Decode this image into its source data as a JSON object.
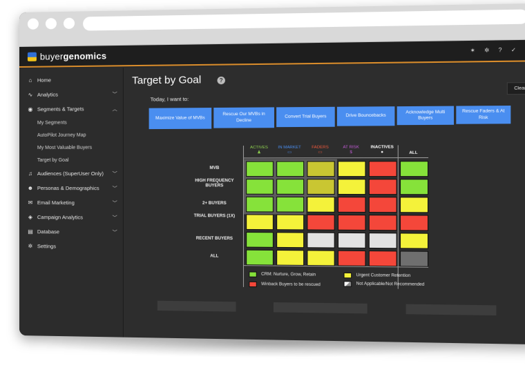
{
  "app": {
    "brand_light": "buyer",
    "brand_bold": "genomics"
  },
  "topbar_icons": [
    "bulb-icon",
    "gear-icon",
    "help-icon",
    "chevron-icon",
    "user-icon"
  ],
  "sidebar": {
    "items": [
      {
        "label": "Home",
        "icon": "home-icon",
        "chevron": false
      },
      {
        "label": "Analytics",
        "icon": "analytics-icon",
        "chevron": true
      },
      {
        "label": "Segments & Targets",
        "icon": "target-icon",
        "chevron": true,
        "open": true,
        "children": [
          "My Segments",
          "AutoPilot Journey Map",
          "My Most Valuable Buyers",
          "Target by Goal"
        ]
      },
      {
        "label": "Audiences (SuperUser Only)",
        "icon": "music-icon",
        "chevron": true
      },
      {
        "label": "Personas & Demographics",
        "icon": "personas-icon",
        "chevron": true
      },
      {
        "label": "Email Marketing",
        "icon": "mail-icon",
        "chevron": true
      },
      {
        "label": "Campaign Analytics",
        "icon": "campaign-icon",
        "chevron": true
      },
      {
        "label": "Database",
        "icon": "database-icon",
        "chevron": true
      },
      {
        "label": "Settings",
        "icon": "gear-icon",
        "chevron": false
      }
    ]
  },
  "main": {
    "title": "Target by Goal",
    "clear_label": "Clear",
    "prompt": "Today, I want to:",
    "goals": [
      "Maximize Value of MVBs",
      "Rescue Our MVBs in Decline",
      "Convert Trial Buyers",
      "Drive Bouncebacks",
      "Acknowledge Multi Buyers",
      "Rescue Faders & At Risk"
    ]
  },
  "grid": {
    "columns": [
      {
        "label": "ACTIVES",
        "color": "#8fd14f"
      },
      {
        "label": "IN MARKET",
        "color": "#4a8ef0"
      },
      {
        "label": "FADERS",
        "color": "#f0593c"
      },
      {
        "label": "AT RISK",
        "color": "#c25bd6"
      },
      {
        "label": "INACTIVES",
        "color": "#ffffff"
      },
      {
        "label": "ALL",
        "color": "#ffffff"
      }
    ],
    "rows": [
      {
        "label": "MVB",
        "cells": [
          "green",
          "green",
          "yellow-dim",
          "yellow",
          "red",
          "green"
        ],
        "active": [
          true,
          true,
          true,
          false,
          false,
          false
        ]
      },
      {
        "label": "HIGH FREQUENCY BUYERS",
        "cells": [
          "green",
          "green",
          "yellow-dim",
          "yellow",
          "red",
          "green"
        ],
        "active": [
          true,
          true,
          true,
          false,
          false,
          false
        ]
      },
      {
        "label": "2+ BUYERS",
        "cells": [
          "green",
          "green",
          "yellow",
          "red",
          "red",
          "yellow"
        ],
        "active": [
          true,
          true,
          false,
          false,
          false,
          false
        ]
      },
      {
        "label": "TRIAL BUYERS (1X)",
        "cells": [
          "yellow",
          "yellow",
          "red",
          "red",
          "red",
          "red"
        ],
        "active": [
          false,
          false,
          false,
          false,
          false,
          false
        ]
      },
      {
        "label": "RECENT BUYERS",
        "cells": [
          "green",
          "yellow",
          "gray",
          "gray",
          "gray",
          "yellow"
        ],
        "active": [
          false,
          false,
          false,
          false,
          false,
          false
        ]
      },
      {
        "label": "ALL",
        "cells": [
          "green",
          "yellow",
          "yellow",
          "red",
          "red",
          "darkgray"
        ],
        "active": [
          false,
          false,
          false,
          false,
          false,
          false
        ]
      }
    ],
    "colors": {
      "green": "#86e23a",
      "yellow": "#f4f23a",
      "yellow-dim": "#c9c632",
      "red": "#f4473a",
      "gray": "#e2e2e2",
      "darkgray": "#6f6f6f"
    }
  },
  "legend": [
    {
      "label": "CRM: Nurture, Grow, Retain",
      "color": "#86e23a"
    },
    {
      "label": "Urgent Customer Retention",
      "color": "#f4f23a"
    },
    {
      "label": "Winback Buyers to be rescued",
      "color": "#f4473a"
    },
    {
      "label": "Not Applicable/Not Recommended",
      "color": "#cfcfcf"
    }
  ]
}
